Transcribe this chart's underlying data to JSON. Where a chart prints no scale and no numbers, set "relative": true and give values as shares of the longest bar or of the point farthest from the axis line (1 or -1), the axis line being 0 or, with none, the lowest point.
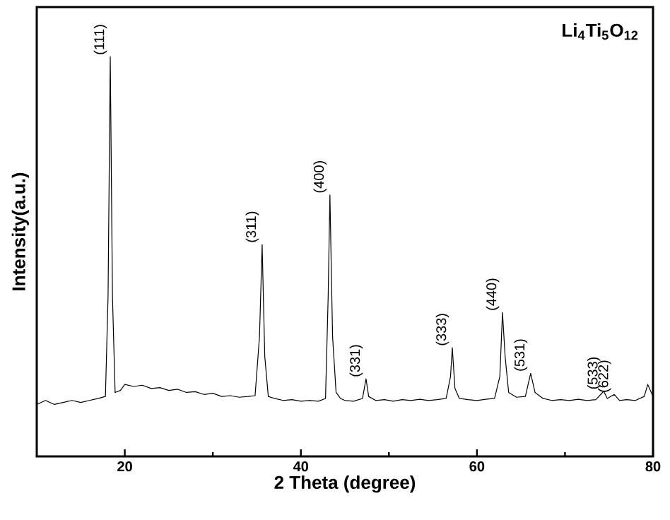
{
  "chart_data": {
    "type": "line",
    "relative": true,
    "xlabel": "2 Theta (degree)",
    "ylabel": "Intensity(a.u.)",
    "color": "#000000",
    "xlim": [
      10,
      80
    ],
    "xticks": [
      20,
      {
        "value": 30,
        "label": null
      },
      40,
      {
        "value": 50,
        "label": null
      },
      60,
      {
        "value": 70,
        "label": null
      },
      80
    ],
    "x": [
      10.0,
      11,
      12,
      13,
      14,
      15,
      16,
      17,
      17.8,
      18.1,
      18.35,
      18.6,
      18.9,
      19.5,
      20,
      21,
      22,
      23,
      24,
      25,
      26,
      27,
      28,
      29,
      30,
      31,
      32,
      33,
      34,
      34.8,
      35.3,
      35.6,
      35.9,
      36.3,
      37,
      38,
      39,
      40,
      41,
      42,
      42.8,
      43.1,
      43.3,
      43.6,
      44,
      44.5,
      45,
      46,
      47,
      47.4,
      47.7,
      48.5,
      49.5,
      50.5,
      51.5,
      52.5,
      53.5,
      54.5,
      55.5,
      56.5,
      57.0,
      57.2,
      57.5,
      58,
      59,
      60,
      61,
      62,
      62.6,
      62.9,
      63.2,
      63.6,
      64.5,
      65.5,
      66.1,
      66.6,
      67.5,
      68.5,
      69.5,
      70.5,
      71.5,
      72.5,
      73.5,
      74.4,
      74.8,
      75.6,
      76.2,
      77,
      78,
      79,
      79.4,
      80
    ],
    "values": [
      0.13,
      0.14,
      0.13,
      0.135,
      0.14,
      0.135,
      0.14,
      0.145,
      0.15,
      0.4,
      1.0,
      0.4,
      0.16,
      0.165,
      0.18,
      0.175,
      0.178,
      0.17,
      0.172,
      0.165,
      0.168,
      0.16,
      0.162,
      0.155,
      0.158,
      0.15,
      0.152,
      0.148,
      0.15,
      0.152,
      0.3,
      0.53,
      0.25,
      0.15,
      0.145,
      0.14,
      0.142,
      0.138,
      0.14,
      0.138,
      0.145,
      0.4,
      0.654,
      0.3,
      0.16,
      0.145,
      0.14,
      0.138,
      0.145,
      0.194,
      0.15,
      0.14,
      0.142,
      0.138,
      0.142,
      0.14,
      0.143,
      0.14,
      0.142,
      0.145,
      0.2,
      0.272,
      0.17,
      0.145,
      0.142,
      0.14,
      0.143,
      0.145,
      0.2,
      0.36,
      0.25,
      0.16,
      0.148,
      0.15,
      0.208,
      0.16,
      0.145,
      0.14,
      0.142,
      0.14,
      0.143,
      0.14,
      0.142,
      0.163,
      0.145,
      0.155,
      0.14,
      0.142,
      0.14,
      0.15,
      0.18,
      0.15
    ],
    "annotations": [
      "Li$_{4}$Ti$_{5}$O$_{12}$",
      {
        "text": "(111)",
        "x": 18.35,
        "y": 1.0
      },
      {
        "text": "(311)",
        "x": 35.6,
        "y": 0.53
      },
      {
        "text": "(400)",
        "x": 43.3,
        "y": 0.654
      },
      {
        "text": "(331)",
        "x": 47.4,
        "y": 0.194
      },
      {
        "text": "(333)",
        "x": 57.2,
        "y": 0.272
      },
      {
        "text": "(440)",
        "x": 62.9,
        "y": 0.36
      },
      {
        "text": "(531)",
        "x": 66.1,
        "y": 0.208
      },
      {
        "text": "(533)",
        "x": 74.4,
        "y": 0.163
      },
      {
        "text": "(622)",
        "x": 75.6,
        "y": 0.155
      }
    ]
  }
}
